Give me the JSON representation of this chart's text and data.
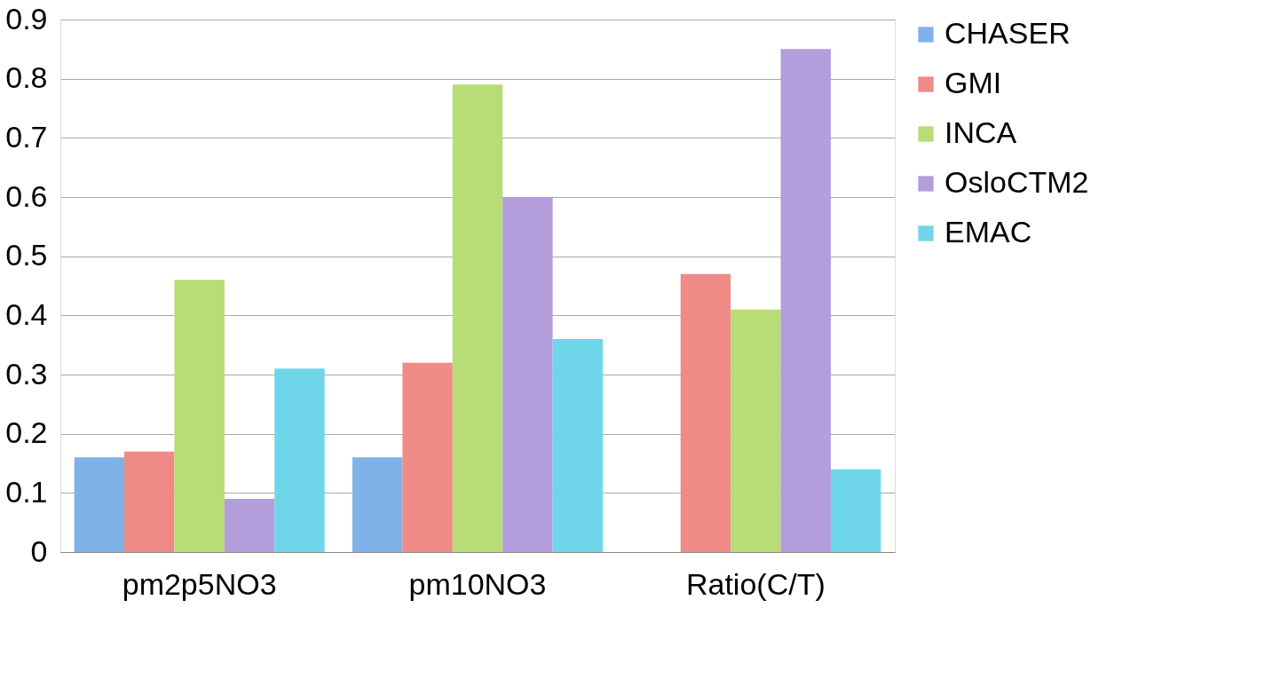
{
  "chart_data": {
    "type": "bar",
    "categories": [
      "pm2p5NO3",
      "pm10NO3",
      "Ratio(C/T)"
    ],
    "series": [
      {
        "name": "CHASER",
        "color": "#7fb2e8",
        "values": [
          0.16,
          0.16,
          null
        ]
      },
      {
        "name": "GMI",
        "color": "#ef8a86",
        "values": [
          0.17,
          0.32,
          0.47
        ]
      },
      {
        "name": "INCA",
        "color": "#b8dc76",
        "values": [
          0.46,
          0.79,
          0.41
        ]
      },
      {
        "name": "OsloCTM2",
        "color": "#b39ddb",
        "values": [
          0.09,
          0.6,
          0.85
        ]
      },
      {
        "name": "EMAC",
        "color": "#6fd6ea",
        "values": [
          0.31,
          0.36,
          0.14
        ]
      }
    ],
    "ylim": [
      0,
      0.9
    ],
    "yticks": [
      0,
      0.1,
      0.2,
      0.3,
      0.4,
      0.5,
      0.6,
      0.7,
      0.8,
      0.9
    ],
    "grid": "y",
    "legend": "right"
  }
}
